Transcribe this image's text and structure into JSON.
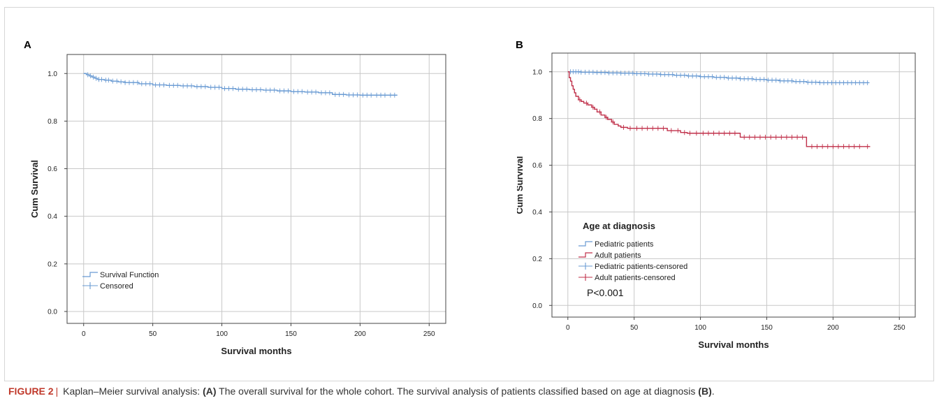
{
  "panels": {
    "a": {
      "letter": "A"
    },
    "b": {
      "letter": "B"
    }
  },
  "caption": {
    "label": "FIGURE 2",
    "separator": "|",
    "text_1": "Kaplan–Meier survival analysis:",
    "tag_a": "(A)",
    "text_2": "The overall survival for the whole cohort. The survival analysis of patients classified based on age at diagnosis",
    "tag_b": "(B)",
    "end": "."
  },
  "colors": {
    "pediatric": "#6a9bd3",
    "adult": "#c0304a",
    "grid": "#c8c8c8",
    "axis": "#444444"
  },
  "chart_data": [
    {
      "panel": "A",
      "type": "line",
      "step": true,
      "xlabel": "Survival months",
      "ylabel": "Cum Survival",
      "xlim": [
        -12,
        262
      ],
      "ylim": [
        -0.05,
        1.08
      ],
      "xticks": [
        0,
        50,
        100,
        150,
        200,
        250
      ],
      "yticks": [
        0.0,
        0.2,
        0.4,
        0.6,
        0.8,
        1.0
      ],
      "tick_labels_x": [
        "0",
        "50",
        "100",
        "150",
        "200",
        "250"
      ],
      "tick_labels_y": [
        "0.0",
        "0.2",
        "0.4",
        "0.6",
        "0.8",
        "1.0"
      ],
      "grid": true,
      "legend": {
        "placement": "bottom-left",
        "entries": [
          {
            "label": "Survival Function",
            "kind": "step"
          },
          {
            "label": "Censored",
            "kind": "plus"
          }
        ]
      },
      "series": [
        {
          "color": "#6a9bd3",
          "x": [
            0,
            2,
            4,
            6,
            8,
            10,
            15,
            20,
            25,
            30,
            40,
            50,
            60,
            70,
            80,
            90,
            100,
            110,
            120,
            130,
            140,
            150,
            160,
            170,
            180,
            190,
            200,
            210,
            220,
            227
          ],
          "y": [
            1.0,
            0.995,
            0.99,
            0.985,
            0.98,
            0.975,
            0.972,
            0.968,
            0.965,
            0.962,
            0.957,
            0.952,
            0.95,
            0.948,
            0.945,
            0.942,
            0.937,
            0.934,
            0.932,
            0.93,
            0.927,
            0.924,
            0.922,
            0.919,
            0.912,
            0.91,
            0.909,
            0.909,
            0.909,
            0.909
          ],
          "censor_x": [
            3,
            5,
            7,
            9,
            11,
            13,
            16,
            18,
            21,
            24,
            27,
            30,
            33,
            36,
            39,
            42,
            45,
            48,
            52,
            55,
            58,
            62,
            65,
            68,
            72,
            75,
            78,
            82,
            85,
            88,
            92,
            95,
            98,
            102,
            105,
            108,
            112,
            115,
            118,
            122,
            125,
            128,
            132,
            135,
            138,
            142,
            145,
            148,
            152,
            155,
            158,
            162,
            165,
            168,
            172,
            175,
            178,
            182,
            185,
            188,
            192,
            195,
            198,
            202,
            205,
            208,
            212,
            215,
            218,
            222,
            225
          ]
        }
      ]
    },
    {
      "panel": "B",
      "type": "line",
      "step": true,
      "xlabel": "Survival months",
      "ylabel": "Cum Survival",
      "xlim": [
        -12,
        262
      ],
      "ylim": [
        -0.05,
        1.08
      ],
      "xticks": [
        0,
        50,
        100,
        150,
        200,
        250
      ],
      "yticks": [
        0.0,
        0.2,
        0.4,
        0.6,
        0.8,
        1.0
      ],
      "tick_labels_x": [
        "0",
        "50",
        "100",
        "150",
        "200",
        "250"
      ],
      "tick_labels_y": [
        "0.0",
        "0.2",
        "0.4",
        "0.6",
        "0.8",
        "1.0"
      ],
      "grid": true,
      "legend": {
        "title": "Age at diagnosis",
        "placement": "bottom-left",
        "entries": [
          {
            "label": "Pediatric patients",
            "kind": "step",
            "color": "#6a9bd3"
          },
          {
            "label": "Adult patients",
            "kind": "step",
            "color": "#c0304a"
          },
          {
            "label": "Pediatric patients-censored",
            "kind": "plus",
            "color": "#6a9bd3"
          },
          {
            "label": "Adult patients-censored",
            "kind": "plus",
            "color": "#c0304a"
          }
        ]
      },
      "annotation": "P<0.001",
      "series": [
        {
          "name": "Pediatric patients",
          "color": "#6a9bd3",
          "x": [
            0,
            10,
            20,
            30,
            40,
            50,
            60,
            70,
            80,
            90,
            100,
            110,
            120,
            130,
            140,
            150,
            160,
            170,
            180,
            190,
            200,
            210,
            220,
            227
          ],
          "y": [
            1.0,
            0.998,
            0.997,
            0.995,
            0.994,
            0.992,
            0.99,
            0.988,
            0.985,
            0.982,
            0.979,
            0.976,
            0.973,
            0.97,
            0.967,
            0.964,
            0.961,
            0.958,
            0.955,
            0.953,
            0.953,
            0.953,
            0.953,
            0.953
          ],
          "censor_x": [
            2,
            4,
            6,
            8,
            10,
            13,
            16,
            19,
            22,
            25,
            28,
            31,
            34,
            37,
            40,
            43,
            46,
            49,
            52,
            55,
            58,
            61,
            64,
            67,
            70,
            73,
            76,
            79,
            82,
            85,
            88,
            91,
            94,
            97,
            100,
            103,
            106,
            109,
            112,
            115,
            118,
            121,
            124,
            127,
            130,
            133,
            136,
            139,
            142,
            145,
            148,
            151,
            154,
            157,
            160,
            163,
            166,
            169,
            172,
            175,
            178,
            181,
            184,
            187,
            190,
            193,
            196,
            199,
            202,
            205,
            208,
            211,
            214,
            217,
            220,
            223,
            226
          ]
        },
        {
          "name": "Adult patients",
          "color": "#c0304a",
          "x": [
            0,
            1,
            2,
            3,
            4,
            5,
            6,
            8,
            10,
            12,
            15,
            18,
            20,
            22,
            25,
            28,
            30,
            33,
            35,
            38,
            40,
            45,
            60,
            75,
            85,
            90,
            100,
            110,
            120,
            130,
            140,
            150,
            178,
            180,
            228
          ],
          "y": [
            1.0,
            0.975,
            0.96,
            0.94,
            0.925,
            0.91,
            0.895,
            0.88,
            0.873,
            0.866,
            0.858,
            0.848,
            0.84,
            0.828,
            0.815,
            0.805,
            0.796,
            0.785,
            0.775,
            0.768,
            0.762,
            0.758,
            0.758,
            0.748,
            0.74,
            0.737,
            0.737,
            0.737,
            0.737,
            0.72,
            0.72,
            0.72,
            0.72,
            0.68,
            0.68
          ],
          "censor_x": [
            9,
            14,
            19,
            24,
            29,
            34,
            42,
            47,
            52,
            56,
            60,
            64,
            68,
            72,
            78,
            83,
            88,
            92,
            97,
            102,
            106,
            110,
            114,
            118,
            122,
            126,
            133,
            137,
            141,
            145,
            149,
            153,
            157,
            161,
            165,
            169,
            173,
            177,
            184,
            188,
            192,
            196,
            200,
            204,
            208,
            212,
            216,
            220,
            226
          ]
        }
      ]
    }
  ]
}
